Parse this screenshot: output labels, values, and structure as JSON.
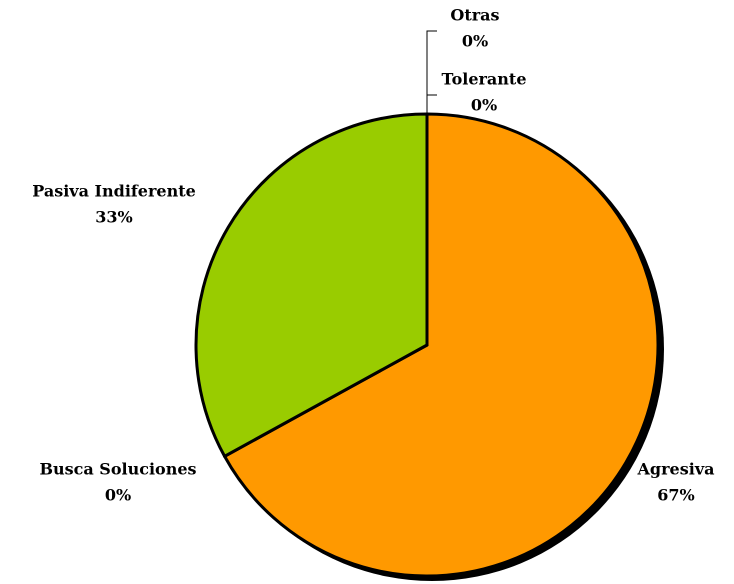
{
  "chart_data": {
    "type": "pie",
    "categories": [
      "Agresiva",
      "Busca Soluciones",
      "Pasiva Indiferente",
      "Tolerante",
      "Otras"
    ],
    "values": [
      67,
      0,
      33,
      0,
      0
    ],
    "value_labels": [
      "67%",
      "0%",
      "33%",
      "0%",
      "0%"
    ],
    "colors": [
      "#FF9900",
      "#FFCC00",
      "#99CC00",
      "#3366FF",
      "#CC99FF"
    ]
  }
}
